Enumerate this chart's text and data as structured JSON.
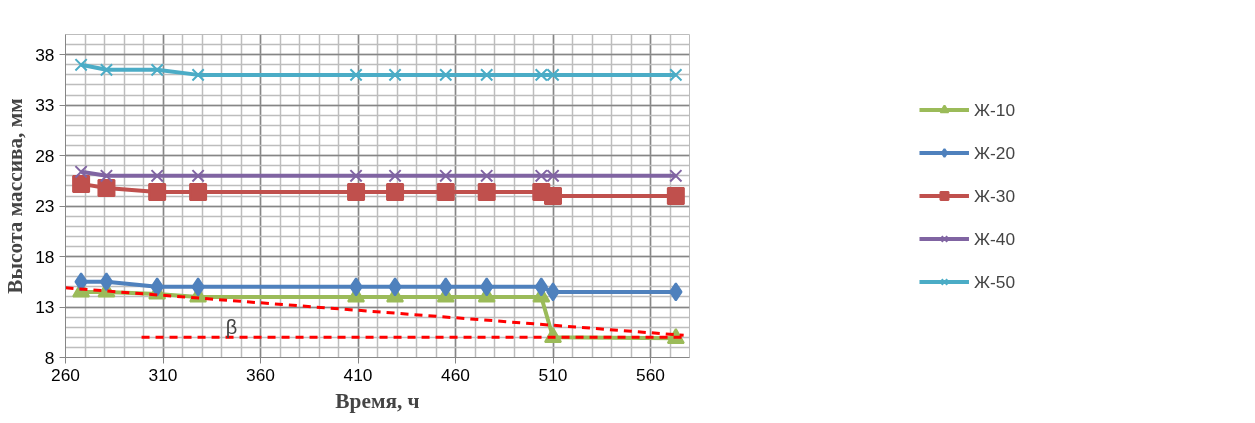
{
  "chart_data": {
    "type": "line",
    "xlabel": "Время, ч",
    "ylabel": "Высота массива, мм",
    "xlim": [
      260,
      580
    ],
    "ylim": [
      8,
      40
    ],
    "xticks": [
      260,
      310,
      360,
      410,
      460,
      510,
      560
    ],
    "yticks": [
      8,
      13,
      18,
      23,
      28,
      33,
      38
    ],
    "grid": true,
    "legend": "right",
    "series": [
      {
        "name": "Ж-10",
        "color": "#9bbb59",
        "marker": "triangle",
        "x": [
          268,
          281,
          307,
          328,
          409,
          429,
          455,
          476,
          504,
          510,
          573
        ],
        "values": [
          14.5,
          14.5,
          14.3,
          14,
          14,
          14,
          14,
          14,
          14,
          10,
          9.9
        ]
      },
      {
        "name": "Ж-20",
        "color": "#4f81bd",
        "marker": "diamond",
        "x": [
          268,
          281,
          307,
          328,
          409,
          429,
          455,
          476,
          504,
          510,
          573
        ],
        "values": [
          15.5,
          15.5,
          15,
          15,
          15,
          15,
          15,
          15,
          15,
          14.5,
          14.5
        ]
      },
      {
        "name": "Ж-30",
        "color": "#c0504d",
        "marker": "square",
        "x": [
          268,
          281,
          307,
          328,
          409,
          429,
          455,
          476,
          504,
          510,
          573
        ],
        "values": [
          25.2,
          24.8,
          24.4,
          24.4,
          24.4,
          24.4,
          24.4,
          24.4,
          24.4,
          24,
          24
        ]
      },
      {
        "name": "Ж-40",
        "color": "#8064a2",
        "marker": "cross",
        "x": [
          268,
          281,
          307,
          328,
          409,
          429,
          455,
          476,
          504,
          510,
          573
        ],
        "values": [
          26.4,
          26,
          26,
          26,
          26,
          26,
          26,
          26,
          26,
          26,
          26
        ]
      },
      {
        "name": "Ж-50",
        "color": "#4bacc6",
        "marker": "cross",
        "x": [
          268,
          281,
          307,
          328,
          409,
          429,
          455,
          476,
          504,
          510,
          573
        ],
        "values": [
          37,
          36.5,
          36.5,
          36,
          36,
          36,
          36,
          36,
          36,
          36,
          36
        ]
      },
      {
        "color": "#ff0000",
        "marker": "none",
        "line_style": "dashed",
        "x": [
          260,
          577
        ],
        "values": [
          14.9,
          10.2
        ]
      },
      {
        "color": "#ff0000",
        "marker": "none",
        "line_style": "dashed",
        "x": [
          299,
          577
        ],
        "values": [
          10,
          10
        ]
      }
    ],
    "annotations": [
      "β"
    ]
  }
}
